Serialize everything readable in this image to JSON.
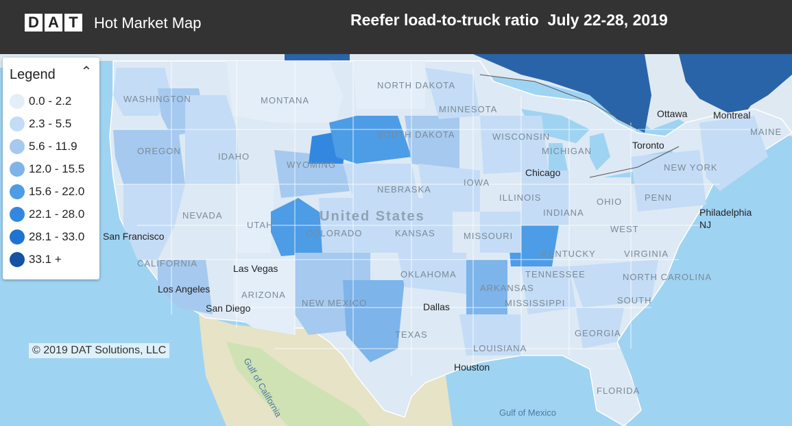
{
  "header": {
    "logo_letters": [
      "D",
      "A",
      "T"
    ],
    "app_title": "Hot Market Map",
    "map_title": "Reefer load-to-truck ratio  July 22-28, 2019"
  },
  "legend": {
    "title": "Legend",
    "toggle_icon": "chevron-up-icon",
    "items": [
      {
        "label": "0.0 - 2.2",
        "color": "#e3eef9"
      },
      {
        "label": "2.3 - 5.5",
        "color": "#c4dcf5"
      },
      {
        "label": "5.6 - 11.9",
        "color": "#a5c9ef"
      },
      {
        "label": "12.0 - 15.5",
        "color": "#7db4ea"
      },
      {
        "label": "15.6 - 22.0",
        "color": "#4d9ce6"
      },
      {
        "label": "22.1 - 28.0",
        "color": "#3288df"
      },
      {
        "label": "28.1 - 33.0",
        "color": "#1f73d1"
      },
      {
        "label": "33.1 +",
        "color": "#1552a3"
      }
    ]
  },
  "copyright": "© 2019 DAT Solutions, LLC",
  "map_labels": {
    "country": "United States",
    "states": [
      "WASHINGTON",
      "MONTANA",
      "NORTH DAKOTA",
      "MINNESOTA",
      "OREGON",
      "IDAHO",
      "WYOMING",
      "SOUTH DAKOTA",
      "WISCONSIN",
      "MICHIGAN",
      "NEVADA",
      "UTAH",
      "COLORADO",
      "NEBRASKA",
      "IOWA",
      "ILLINOIS",
      "INDIANA",
      "OHIO",
      "KANSAS",
      "MISSOURI",
      "KENTUCKY",
      "CALIFORNIA",
      "ARIZONA",
      "NEW MEXICO",
      "OKLAHOMA",
      "ARKANSAS",
      "TENNESSEE",
      "TEXAS",
      "LOUISIANA",
      "MISSISSIPPI",
      "GEORGIA",
      "FLORIDA",
      "PENN",
      "VIRGINIA",
      "WEST",
      "NORTH CAROLINA",
      "SOUTH",
      "NEW YORK",
      "MAINE"
    ],
    "cities": [
      "San Francisco",
      "Las Vegas",
      "Los Angeles",
      "San Diego",
      "Dallas",
      "Houston",
      "Chicago",
      "Toronto",
      "Ottawa",
      "Montreal",
      "Philadelphia"
    ],
    "water": [
      "Gulf of California",
      "Gulf of Mexico"
    ],
    "misc": [
      "NJ"
    ]
  }
}
